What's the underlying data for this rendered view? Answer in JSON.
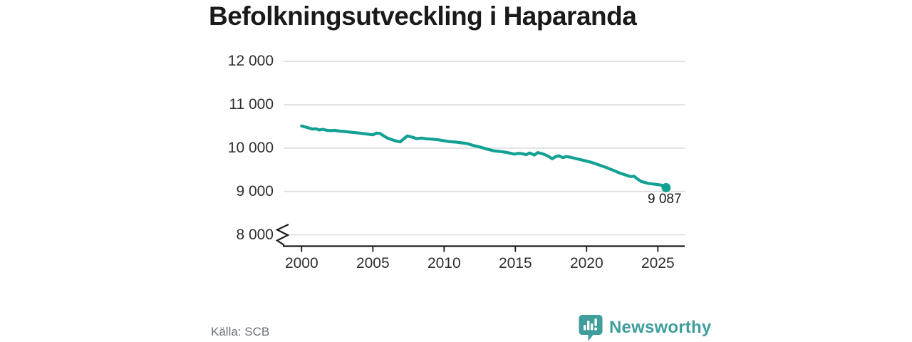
{
  "title": "Befolkningsutveckling i Haparanda",
  "source": "Källa: SCB",
  "end_label": "9 087",
  "brand": {
    "name": "Newsworthy",
    "icon": "newsworthy-bubble-bar-chart-icon"
  },
  "colors": {
    "line": "#12a193",
    "grid": "#dcdcdc",
    "axis": "#1a1a1a",
    "title_text": "#1a1a1a",
    "tick_text": "#2e2e2e",
    "source_text": "#6b7079",
    "brand_teal": "#3f9e9c"
  },
  "chart_data": {
    "type": "line",
    "title": "Befolkningsutveckling i Haparanda",
    "xlabel": "",
    "ylabel": "",
    "grid": "horizontal",
    "axis_break_at_bottom": true,
    "xlim": [
      1998.75,
      2026.9
    ],
    "ylim": [
      8000,
      12000
    ],
    "y_ticks": [
      {
        "label": "12 000",
        "value": 12000
      },
      {
        "label": "11 000",
        "value": 11000
      },
      {
        "label": "10 000",
        "value": 10000
      },
      {
        "label": "9 000",
        "value": 9000
      },
      {
        "label": "8 000",
        "value": 8000
      }
    ],
    "x_ticks": [
      {
        "label": "2000",
        "year": 2000
      },
      {
        "label": "2005",
        "year": 2005
      },
      {
        "label": "2010",
        "year": 2010
      },
      {
        "label": "2015",
        "year": 2015
      },
      {
        "label": "2020",
        "year": 2020
      },
      {
        "label": "2025",
        "year": 2025
      }
    ],
    "series": [
      {
        "name": "Befolkning i Haparanda",
        "color": "#12a193",
        "points": [
          [
            2000.0,
            10512
          ],
          [
            2000.25,
            10490
          ],
          [
            2000.5,
            10465
          ],
          [
            2000.75,
            10440
          ],
          [
            2001.0,
            10448
          ],
          [
            2001.25,
            10420
          ],
          [
            2001.5,
            10435
          ],
          [
            2001.75,
            10412
          ],
          [
            2002.0,
            10405
          ],
          [
            2002.33,
            10410
          ],
          [
            2002.67,
            10392
          ],
          [
            2003.0,
            10385
          ],
          [
            2003.33,
            10372
          ],
          [
            2003.67,
            10360
          ],
          [
            2004.0,
            10348
          ],
          [
            2004.33,
            10335
          ],
          [
            2004.67,
            10322
          ],
          [
            2005.0,
            10308
          ],
          [
            2005.25,
            10345
          ],
          [
            2005.5,
            10338
          ],
          [
            2005.75,
            10285
          ],
          [
            2006.0,
            10235
          ],
          [
            2006.33,
            10195
          ],
          [
            2006.67,
            10162
          ],
          [
            2006.92,
            10145
          ],
          [
            2007.17,
            10215
          ],
          [
            2007.42,
            10282
          ],
          [
            2007.75,
            10255
          ],
          [
            2008.08,
            10218
          ],
          [
            2008.42,
            10232
          ],
          [
            2008.75,
            10215
          ],
          [
            2009.17,
            10208
          ],
          [
            2009.58,
            10192
          ],
          [
            2010.0,
            10170
          ],
          [
            2010.42,
            10148
          ],
          [
            2010.83,
            10140
          ],
          [
            2011.25,
            10122
          ],
          [
            2011.58,
            10108
          ],
          [
            2012.0,
            10066
          ],
          [
            2012.5,
            10026
          ],
          [
            2013.0,
            9978
          ],
          [
            2013.5,
            9938
          ],
          [
            2014.0,
            9920
          ],
          [
            2014.42,
            9900
          ],
          [
            2014.92,
            9862
          ],
          [
            2015.25,
            9880
          ],
          [
            2015.5,
            9870
          ],
          [
            2015.75,
            9848
          ],
          [
            2016.0,
            9888
          ],
          [
            2016.33,
            9840
          ],
          [
            2016.58,
            9898
          ],
          [
            2016.83,
            9876
          ],
          [
            2017.08,
            9848
          ],
          [
            2017.33,
            9810
          ],
          [
            2017.58,
            9755
          ],
          [
            2017.83,
            9805
          ],
          [
            2018.08,
            9822
          ],
          [
            2018.33,
            9782
          ],
          [
            2018.58,
            9806
          ],
          [
            2018.83,
            9792
          ],
          [
            2019.33,
            9754
          ],
          [
            2019.83,
            9714
          ],
          [
            2020.33,
            9672
          ],
          [
            2020.83,
            9616
          ],
          [
            2021.33,
            9560
          ],
          [
            2021.83,
            9494
          ],
          [
            2022.33,
            9424
          ],
          [
            2022.83,
            9368
          ],
          [
            2023.08,
            9342
          ],
          [
            2023.33,
            9352
          ],
          [
            2023.58,
            9285
          ],
          [
            2023.83,
            9230
          ],
          [
            2024.33,
            9186
          ],
          [
            2024.83,
            9164
          ],
          [
            2025.17,
            9150
          ],
          [
            2025.42,
            9130
          ],
          [
            2025.58,
            9087
          ]
        ]
      }
    ],
    "end_point": {
      "year": 2025.58,
      "value": 9087,
      "label": "9 087"
    },
    "legend": "none"
  }
}
